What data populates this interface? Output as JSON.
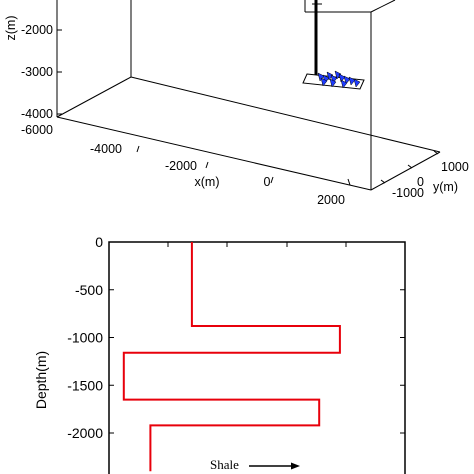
{
  "chart_data": [
    {
      "type": "scatter",
      "view": "3d",
      "xlabel": "x(m)",
      "ylabel": "y(m)",
      "zlabel": "z(m)",
      "x_ticks": [
        "-4000",
        "-2000",
        "0",
        "2000"
      ],
      "y_ticks": [
        "-1000",
        "0",
        "1000"
      ],
      "z_ticks": [
        "-6000",
        "-4000",
        "-3000",
        "-2000"
      ],
      "colors": {
        "well": "#000000",
        "events": "#1f3cff",
        "box": "#000000"
      }
    },
    {
      "type": "line",
      "ylabel": "Depth(m)",
      "y_ticks": [
        "0",
        "-500",
        "-1000",
        "-1500",
        "-2000"
      ],
      "ylim": [
        -2400,
        0
      ],
      "series": [
        {
          "color": "#e8000b",
          "depth": [
            0,
            -880,
            -880,
            -1160,
            -1160,
            -1650,
            -1650,
            -1920,
            -1920,
            -2400
          ],
          "value": [
            0.28,
            0.28,
            0.78,
            0.78,
            0.05,
            0.05,
            0.71,
            0.71,
            0.14,
            0.14
          ]
        }
      ],
      "annotation": {
        "text": "Shale"
      }
    }
  ]
}
